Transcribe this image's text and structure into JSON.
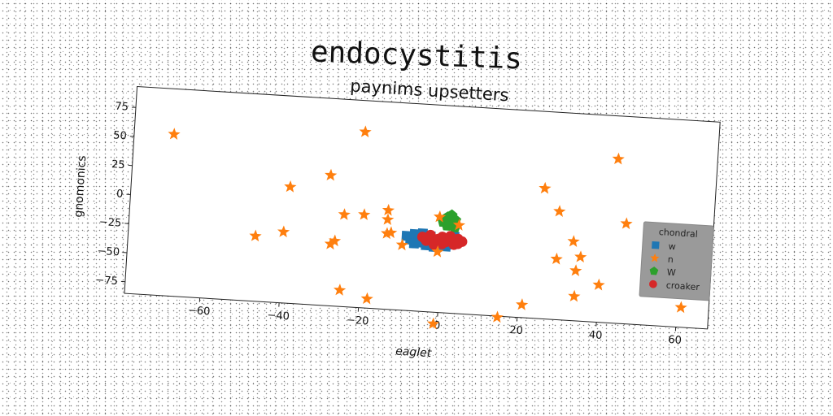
{
  "figure_title": "endocystitis",
  "chart_data": {
    "type": "scatter",
    "title": "paynims upsetters",
    "xlabel": "eaglet",
    "ylabel": "gnomonics",
    "xlim": [
      -79,
      68
    ],
    "ylim": [
      -85,
      93
    ],
    "xticks": [
      -60,
      -40,
      -20,
      0,
      20,
      40,
      60
    ],
    "yticks": [
      -75,
      -50,
      -25,
      0,
      25,
      50,
      75
    ],
    "grid": false,
    "legend": {
      "title": "chondral",
      "placement": "right"
    },
    "series": [
      {
        "name": "w",
        "marker": "square",
        "color": "#1f77b4",
        "points": [
          [
            -9,
            -21
          ],
          [
            -8,
            -24
          ],
          [
            -7,
            -19
          ],
          [
            -6,
            -26
          ],
          [
            -5,
            -22
          ],
          [
            -4,
            -28
          ],
          [
            -3,
            -20
          ],
          [
            -2,
            -25
          ],
          [
            -1,
            -23
          ],
          [
            0,
            -27
          ],
          [
            1,
            -21
          ],
          [
            2,
            -26
          ],
          [
            3,
            -24
          ],
          [
            -7,
            -27
          ],
          [
            -5,
            -18
          ],
          [
            -2,
            -29
          ],
          [
            1,
            -28
          ],
          [
            3,
            -19
          ]
        ]
      },
      {
        "name": "n",
        "marker": "star",
        "color": "#ff7f0e",
        "points": [
          [
            -69,
            54
          ],
          [
            -21,
            66
          ],
          [
            43,
            56
          ],
          [
            -29,
            27
          ],
          [
            25,
            27
          ],
          [
            -39,
            15
          ],
          [
            29,
            8
          ],
          [
            46,
            1
          ],
          [
            -25,
            -6
          ],
          [
            -20,
            -5
          ],
          [
            -14,
            -8
          ],
          [
            -14,
            0
          ],
          [
            -1,
            -3
          ],
          [
            4,
            -9
          ],
          [
            -47,
            -29
          ],
          [
            -40,
            -24
          ],
          [
            -28,
            -32
          ],
          [
            -27,
            -29
          ],
          [
            -14,
            -20
          ],
          [
            -13,
            -19
          ],
          [
            -10,
            -29
          ],
          [
            -1,
            -33
          ],
          [
            33,
            -17
          ],
          [
            29,
            -33
          ],
          [
            35,
            -30
          ],
          [
            34,
            -42
          ],
          [
            40,
            -53
          ],
          [
            -25,
            -71
          ],
          [
            -18,
            -77
          ],
          [
            21,
            -74
          ],
          [
            34,
            -64
          ],
          [
            61,
            -68
          ],
          [
            15,
            -86
          ],
          [
            -1,
            -95
          ]
        ]
      },
      {
        "name": "W",
        "marker": "pentagon",
        "color": "#2ca02c",
        "points": [
          [
            0,
            -7
          ],
          [
            1,
            -3
          ],
          [
            2,
            -9
          ],
          [
            3,
            -5
          ],
          [
            2,
            -1
          ],
          [
            1,
            -10
          ],
          [
            3,
            -11
          ]
        ]
      },
      {
        "name": "croaker",
        "marker": "circle",
        "color": "#d62728",
        "points": [
          [
            -5,
            -21
          ],
          [
            -4,
            -24
          ],
          [
            -3,
            -19
          ],
          [
            -2,
            -25
          ],
          [
            -1,
            -22
          ],
          [
            0,
            -20
          ],
          [
            1,
            -24
          ],
          [
            2,
            -22
          ],
          [
            3,
            -26
          ],
          [
            4,
            -21
          ],
          [
            5,
            -23
          ],
          [
            -2,
            -27
          ],
          [
            0,
            -26
          ],
          [
            2,
            -19
          ],
          [
            4,
            -25
          ]
        ]
      }
    ]
  }
}
